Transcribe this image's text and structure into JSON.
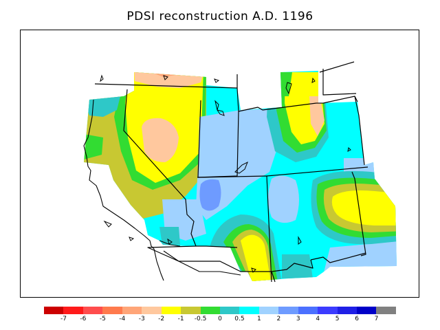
{
  "title": "PDSI reconstruction A.D. 1196",
  "legend": {
    "colors": [
      "#cc0000",
      "#ff1a1a",
      "#ff4d4d",
      "#ff7a4d",
      "#ffa578",
      "#ffc89e",
      "#ffff00",
      "#c8c832",
      "#32dc32",
      "#2ec8c8",
      "#00ffff",
      "#a0d2ff",
      "#6e9bff",
      "#4b70ff",
      "#3b3bff",
      "#1f1fe6",
      "#0000c8",
      "#808080"
    ],
    "labels": [
      "-7",
      "-6",
      "-5",
      "-4",
      "-3",
      "-2",
      "-1",
      "-0.5",
      "0",
      "0.5",
      "1",
      "2",
      "3",
      "4",
      "5",
      "6",
      "7"
    ]
  }
}
